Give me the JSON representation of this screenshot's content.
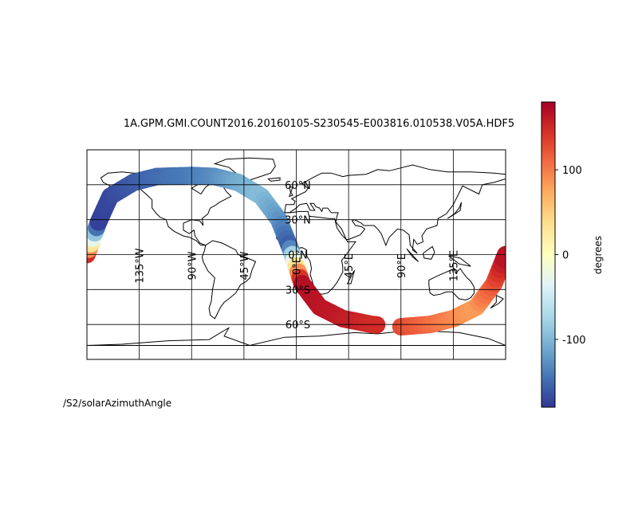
{
  "title": "1A.GPM.GMI.COUNT2016.20160105-S230545-E003816.010538.V05A.HDF5",
  "footer": "/S2/solarAzimuthAngle",
  "map": {
    "projection": "plate-carree",
    "lon_range": [
      -180,
      180
    ],
    "lat_range": [
      -90,
      90
    ],
    "grid_lons": [
      -135,
      -90,
      -45,
      0,
      45,
      90,
      135
    ],
    "grid_lats": [
      -60,
      -30,
      0,
      30,
      60
    ],
    "lon_labels": [
      "135°W",
      "90°W",
      "45°W",
      "0°E",
      "45°E",
      "90°E",
      "135°E"
    ],
    "lat_labels": [
      "60°N",
      "30°N",
      "0°N",
      "30°S",
      "60°S"
    ],
    "coastline_color": "#000000"
  },
  "chart_data": {
    "type": "swath",
    "variable": "/S2/solarAzimuthAngle",
    "track": [
      {
        "lon": -180,
        "lat": 0,
        "value": 178
      },
      {
        "lon": -170,
        "lat": 28,
        "value": -175
      },
      {
        "lon": -160,
        "lat": 50,
        "value": -170
      },
      {
        "lon": -140,
        "lat": 62,
        "value": -160
      },
      {
        "lon": -120,
        "lat": 67,
        "value": -150
      },
      {
        "lon": -90,
        "lat": 68,
        "value": -140
      },
      {
        "lon": -70,
        "lat": 67,
        "value": -130
      },
      {
        "lon": -50,
        "lat": 62,
        "value": -110
      },
      {
        "lon": -30,
        "lat": 50,
        "value": -95
      },
      {
        "lon": -15,
        "lat": 30,
        "value": -120
      },
      {
        "lon": -5,
        "lat": 5,
        "value": -160
      },
      {
        "lon": 5,
        "lat": -25,
        "value": 170
      },
      {
        "lon": 20,
        "lat": -45,
        "value": 165
      },
      {
        "lon": 40,
        "lat": -55,
        "value": 160
      },
      {
        "lon": 65,
        "lat": -60,
        "value": 150
      },
      {
        "lon": 90,
        "lat": -62,
        "value": 130
      },
      {
        "lon": 115,
        "lat": -60,
        "value": 110
      },
      {
        "lon": 135,
        "lat": -55,
        "value": 95
      },
      {
        "lon": 155,
        "lat": -45,
        "value": 80
      },
      {
        "lon": 170,
        "lat": -25,
        "value": 120
      },
      {
        "lon": 180,
        "lat": 0,
        "value": 170
      }
    ],
    "gap_lon_range": [
      70,
      90
    ],
    "colorbar": {
      "range": [
        -180,
        180
      ],
      "ticks": [
        100,
        0,
        -100
      ],
      "tick_labels": [
        "100",
        "0",
        "-100"
      ],
      "label": "degrees",
      "colormap": "RdYlBu_r",
      "colors": [
        "#313695",
        "#4575b4",
        "#74add1",
        "#abd9e9",
        "#e0f3f8",
        "#ffffbf",
        "#fee090",
        "#fdae61",
        "#f46d43",
        "#d73027",
        "#a50026"
      ]
    }
  }
}
